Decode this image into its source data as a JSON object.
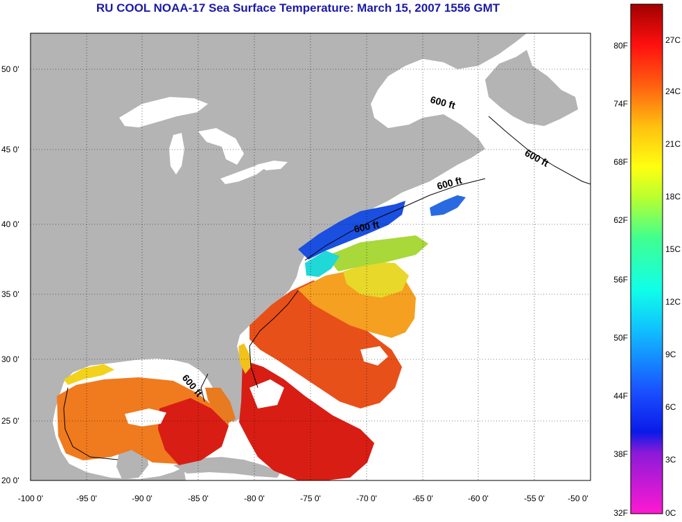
{
  "title": "RU COOL  NOAA-17  Sea Surface Temperature:  March 15, 2007 1556 GMT",
  "axes": {
    "x_ticks": [
      "-100 0'",
      "-95 0'",
      "-90 0'",
      "-85 0'",
      "-80 0'",
      "-75 0'",
      "-70 0'",
      "-65 0'",
      "-60 0'",
      "-55 0'",
      "-50 0'"
    ],
    "y_ticks": [
      "50 0'",
      "45 0'",
      "40 0'",
      "35 0'",
      "30 0'",
      "25 0'",
      "20 0'"
    ]
  },
  "contour_labels": [
    "600 ft",
    "600 ft",
    "600 ft",
    "600 ft",
    "600 ft"
  ],
  "colorbar": {
    "fahrenheit_labels": [
      "80F",
      "74F",
      "68F",
      "62F",
      "56F",
      "50F",
      "44F",
      "38F",
      "32F"
    ],
    "celsius_labels": [
      "27C",
      "24C",
      "21C",
      "18C",
      "15C",
      "12C",
      "9C",
      "6C",
      "3C",
      "0C"
    ]
  },
  "colors": {
    "land": "#b4b4b4",
    "ocean_no_data": "#ffffff",
    "title": "#1a1aa8"
  }
}
